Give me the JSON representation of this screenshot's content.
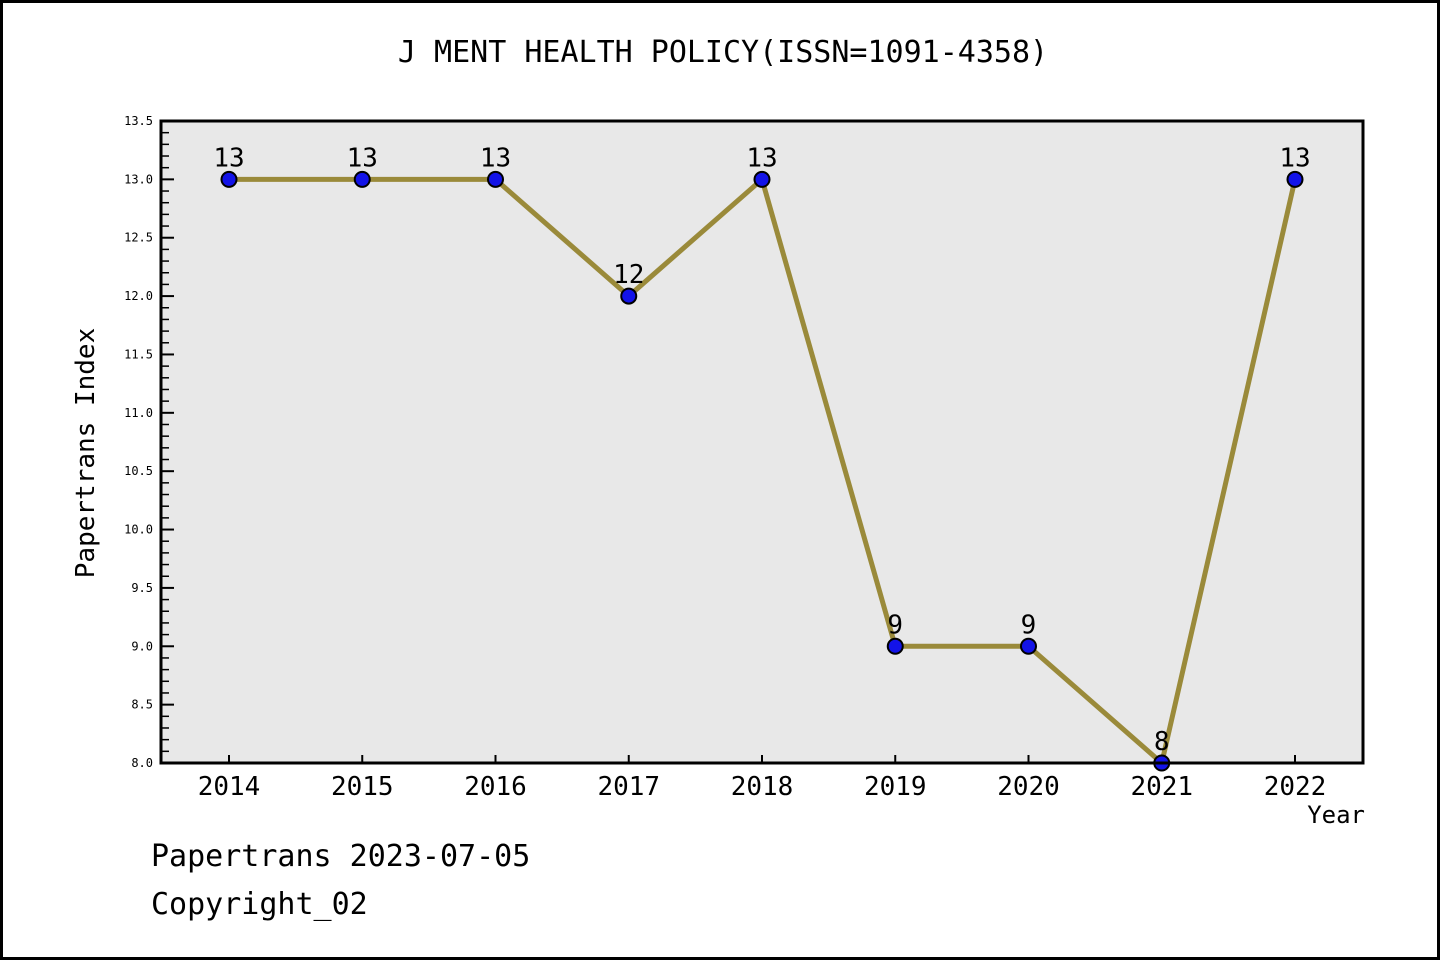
{
  "title": "J MENT HEALTH POLICY(ISSN=1091-4358)",
  "footer": {
    "line1": "Papertrans 2023-07-05",
    "line2": "Copyright_02"
  },
  "chart_data": {
    "type": "line",
    "title": "J MENT HEALTH POLICY(ISSN=1091-4358)",
    "x": [
      "2014",
      "2015",
      "2016",
      "2017",
      "2018",
      "2019",
      "2020",
      "2021",
      "2022"
    ],
    "values": [
      13,
      13,
      13,
      12,
      13,
      9,
      9,
      8,
      13
    ],
    "point_labels": [
      "13",
      "13",
      "13",
      "12",
      "13",
      "9",
      "9",
      "8",
      "13"
    ],
    "xlabel": "Year",
    "ylabel": "Papertrans Index",
    "ylim": [
      8.0,
      13.5
    ],
    "ytick_major_step": 0.5,
    "ytick_minor_step": 0.1,
    "grid": false,
    "legend": null,
    "colors": {
      "line": "#9A8A3A",
      "marker_fill": "#1313E8",
      "marker_edge": "#000000",
      "plot_background": "#E8E8E8",
      "axis": "#000000",
      "text": "#000000"
    }
  }
}
